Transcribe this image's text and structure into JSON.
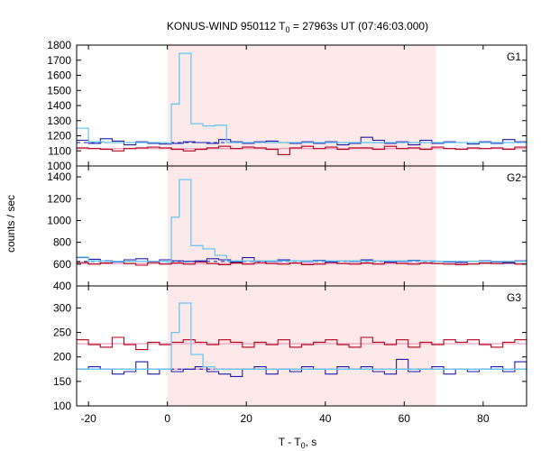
{
  "chart_data": {
    "type": "line",
    "title_main": "KONUS-WIND 950112 T",
    "title_sub": "0",
    "title_rest": " = 27963s UT (07:46:03.000)",
    "xlabel_main": "T - T",
    "xlabel_sub": "0",
    "xlabel_rest": ", s",
    "ylabel": "counts / sec",
    "xlim": [
      -23,
      91
    ],
    "x_ticks": [
      -20,
      0,
      20,
      40,
      60,
      80
    ],
    "shaded_interval": [
      0,
      68
    ],
    "colors": {
      "shade": "#fde9ea",
      "light_blue": "#6ac8f0",
      "dark_blue": "#1c1ca8",
      "dark_red": "#b0001c",
      "pink": "#f296b8",
      "dashed_blue": "#1a3cd0"
    },
    "panels": [
      {
        "name": "G1",
        "ylim": [
          1000,
          1800
        ],
        "y_ticks": [
          1000,
          1100,
          1200,
          1300,
          1400,
          1500,
          1600,
          1700,
          1800
        ],
        "background_level": 1115,
        "dashed_level": 1155,
        "peak_x": [
          -23,
          -20,
          -16,
          0,
          1,
          3,
          6,
          9,
          12,
          15,
          68,
          91
        ],
        "peak_y": [
          1250,
          1160,
          1155,
          1150,
          1410,
          1745,
          1280,
          1265,
          1270,
          1155,
          1155,
          1155
        ],
        "blue_x": [
          -23,
          -20,
          -17,
          -14,
          -11,
          -8,
          -5,
          -2,
          1,
          4,
          7,
          10,
          13,
          16,
          19,
          22,
          25,
          28,
          31,
          34,
          37,
          40,
          43,
          46,
          49,
          52,
          55,
          58,
          61,
          64,
          67,
          70,
          73,
          76,
          79,
          82,
          85,
          88,
          91
        ],
        "blue_y": [
          1170,
          1150,
          1180,
          1165,
          1140,
          1160,
          1150,
          1145,
          1150,
          1160,
          1155,
          1150,
          1175,
          1160,
          1150,
          1160,
          1165,
          1155,
          1150,
          1160,
          1150,
          1160,
          1140,
          1150,
          1190,
          1170,
          1150,
          1160,
          1140,
          1170,
          1150,
          1160,
          1155,
          1145,
          1160,
          1150,
          1175,
          1160,
          1150
        ],
        "red_x": [
          -23,
          -20,
          -17,
          -14,
          -11,
          -8,
          -5,
          -2,
          1,
          4,
          7,
          10,
          13,
          16,
          19,
          22,
          25,
          28,
          31,
          34,
          37,
          40,
          43,
          46,
          49,
          52,
          55,
          58,
          61,
          64,
          67,
          70,
          73,
          76,
          79,
          82,
          85,
          88,
          91
        ],
        "red_y": [
          1120,
          1115,
          1110,
          1100,
          1115,
          1120,
          1125,
          1120,
          1110,
          1100,
          1110,
          1120,
          1130,
          1115,
          1125,
          1120,
          1110,
          1075,
          1120,
          1130,
          1115,
          1125,
          1110,
          1120,
          1120,
          1110,
          1130,
          1115,
          1120,
          1110,
          1125,
          1115,
          1110,
          1120,
          1115,
          1120,
          1110,
          1125,
          1120
        ]
      },
      {
        "name": "G2",
        "ylim": [
          400,
          1500
        ],
        "y_ticks": [
          400,
          600,
          800,
          1000,
          1200,
          1400
        ],
        "background_level": 605,
        "dashed_level": 625,
        "peak_x": [
          -23,
          -20,
          -16,
          0,
          1,
          3,
          6,
          9,
          12,
          15,
          68,
          91
        ],
        "peak_y": [
          665,
          630,
          625,
          620,
          1030,
          1375,
          770,
          740,
          680,
          630,
          625,
          625
        ],
        "blue_x": [
          -23,
          -20,
          -17,
          -14,
          -11,
          -8,
          -5,
          -2,
          1,
          4,
          7,
          10,
          13,
          16,
          19,
          22,
          25,
          28,
          31,
          34,
          37,
          40,
          43,
          46,
          49,
          52,
          55,
          58,
          61,
          64,
          67,
          70,
          73,
          76,
          79,
          82,
          85,
          88,
          91
        ],
        "blue_y": [
          660,
          645,
          630,
          620,
          640,
          650,
          625,
          640,
          630,
          625,
          630,
          650,
          640,
          620,
          660,
          630,
          625,
          640,
          630,
          625,
          635,
          620,
          630,
          625,
          640,
          630,
          620,
          625,
          635,
          630,
          625,
          620,
          615,
          625,
          630,
          620,
          610,
          630,
          620
        ],
        "red_x": [
          -23,
          -20,
          -17,
          -14,
          -11,
          -8,
          -5,
          -2,
          1,
          4,
          7,
          10,
          13,
          16,
          19,
          22,
          25,
          28,
          31,
          34,
          37,
          40,
          43,
          46,
          49,
          52,
          55,
          58,
          61,
          64,
          67,
          70,
          73,
          76,
          79,
          82,
          85,
          88,
          91
        ],
        "red_y": [
          615,
          600,
          610,
          620,
          605,
          590,
          615,
          600,
          610,
          600,
          620,
          605,
          595,
          610,
          600,
          615,
          605,
          600,
          610,
          595,
          600,
          615,
          605,
          600,
          610,
          600,
          615,
          605,
          600,
          610,
          605,
          600,
          595,
          600,
          610,
          605,
          620,
          600,
          610
        ]
      },
      {
        "name": "G3",
        "ylim": [
          100,
          345
        ],
        "y_ticks": [
          100,
          150,
          200,
          250,
          300
        ],
        "background_level": 175,
        "dashed_level": 175,
        "pink_level": 227,
        "peak_x": [
          -23,
          -20,
          -16,
          0,
          1,
          3,
          6,
          9,
          12,
          68,
          91
        ],
        "peak_y": [
          175,
          175,
          175,
          175,
          250,
          310,
          205,
          180,
          175,
          175,
          175
        ],
        "blue_x": [
          -23,
          -20,
          -17,
          -14,
          -11,
          -8,
          -5,
          -2,
          1,
          4,
          7,
          10,
          13,
          16,
          19,
          22,
          25,
          28,
          31,
          34,
          37,
          40,
          43,
          46,
          49,
          52,
          55,
          58,
          61,
          64,
          67,
          70,
          73,
          76,
          79,
          82,
          85,
          88,
          91
        ],
        "blue_y": [
          175,
          180,
          175,
          165,
          170,
          190,
          165,
          175,
          170,
          175,
          180,
          170,
          165,
          160,
          175,
          180,
          165,
          175,
          170,
          180,
          175,
          165,
          180,
          175,
          180,
          170,
          165,
          195,
          170,
          175,
          180,
          165,
          175,
          170,
          175,
          180,
          170,
          190,
          170
        ],
        "red_x": [
          -23,
          -20,
          -17,
          -14,
          -11,
          -8,
          -5,
          -2,
          1,
          4,
          7,
          10,
          13,
          16,
          19,
          22,
          25,
          28,
          31,
          34,
          37,
          40,
          43,
          46,
          49,
          52,
          55,
          58,
          61,
          64,
          67,
          70,
          73,
          76,
          79,
          82,
          85,
          88,
          91
        ],
        "red_y": [
          235,
          225,
          220,
          240,
          225,
          215,
          230,
          225,
          230,
          235,
          230,
          225,
          235,
          230,
          220,
          230,
          225,
          235,
          220,
          225,
          230,
          235,
          225,
          220,
          240,
          230,
          225,
          235,
          220,
          230,
          225,
          235,
          230,
          235,
          225,
          220,
          230,
          235,
          225
        ]
      }
    ]
  }
}
